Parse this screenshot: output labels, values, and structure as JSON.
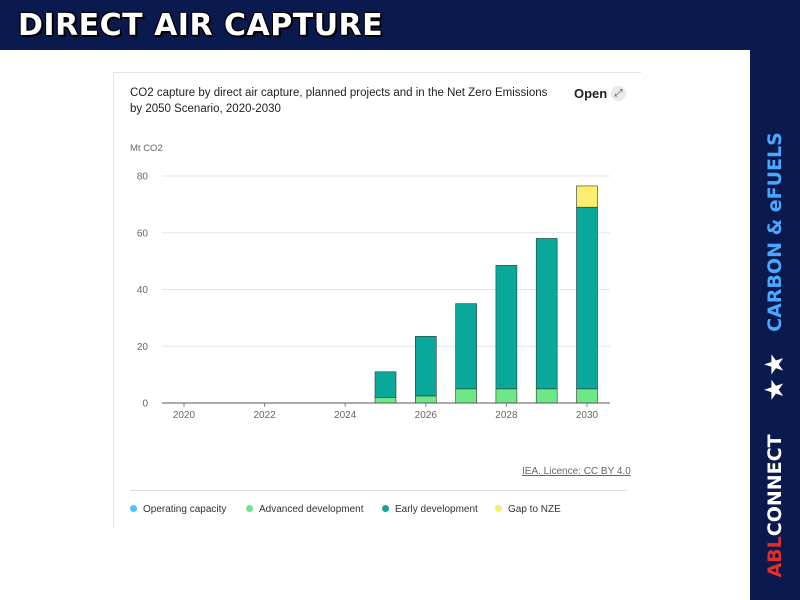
{
  "slide": {
    "title": "DIRECT AIR CAPTURE",
    "side_topic": "CARBON & eFUELS",
    "side_stars": "★★",
    "brand_abl": "ABL",
    "brand_rest": "CONNECT"
  },
  "card": {
    "open_label": "Open",
    "open_icon": "⤢",
    "credit": "IEA. Licence: CC BY 4.0"
  },
  "colors": {
    "operating": "#4fc3f7",
    "advanced": "#6ee787",
    "early": "#0aa89a",
    "gap": "#fbee6e",
    "banner": "#0b1a4e"
  },
  "chart_data": {
    "type": "bar",
    "stacked": true,
    "title": "CO2 capture by direct air capture, planned projects and in the Net Zero Emissions by 2050 Scenario, 2020-2030",
    "ylabel": "Mt CO2",
    "xlabel": "",
    "ylim": [
      0,
      80
    ],
    "yticks": [
      "0",
      "20",
      "40",
      "60",
      "80"
    ],
    "categories": [
      "2020",
      "2021",
      "2022",
      "2023",
      "2024",
      "2025",
      "2026",
      "2027",
      "2028",
      "2029",
      "2030"
    ],
    "xtick_labels": [
      "2020",
      "",
      "2022",
      "",
      "2024",
      "",
      "2026",
      "",
      "2028",
      "",
      "2030"
    ],
    "series": [
      {
        "name": "Operating capacity",
        "color_key": "operating",
        "values": [
          0,
          0,
          0,
          0,
          0,
          0,
          0,
          0,
          0,
          0,
          0
        ]
      },
      {
        "name": "Advanced development",
        "color_key": "advanced",
        "values": [
          0,
          0,
          0,
          0,
          0,
          2,
          2.5,
          5,
          5,
          5,
          5
        ]
      },
      {
        "name": "Early development",
        "color_key": "early",
        "values": [
          0,
          0,
          0,
          0,
          0,
          9,
          21,
          30,
          43.5,
          53,
          64
        ]
      },
      {
        "name": "Gap to NZE",
        "color_key": "gap",
        "values": [
          0,
          0,
          0,
          0,
          0,
          0,
          0,
          0,
          0,
          0,
          7.5
        ]
      }
    ],
    "legend_position": "bottom"
  }
}
